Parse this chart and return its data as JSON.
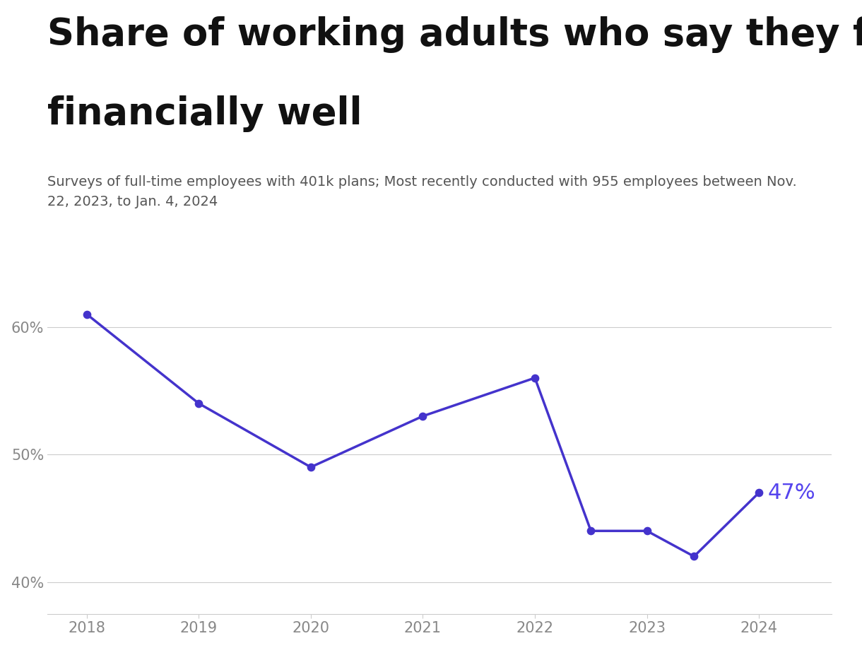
{
  "title_line1": "Share of working adults who say they feel",
  "title_line2": "financially well",
  "subtitle": "Surveys of full-time employees with 401k plans; Most recently conducted with 955 employees between Nov.\n22, 2023, to Jan. 4, 2024",
  "x_values": [
    2018,
    2019,
    2020,
    2021,
    2022,
    2022.5,
    2023.0,
    2023.42,
    2024
  ],
  "y_values": [
    61,
    54,
    49,
    53,
    56,
    44,
    44,
    42,
    47
  ],
  "line_color": "#4433cc",
  "marker_color": "#4433cc",
  "label_last": "47%",
  "label_color": "#5544ee",
  "yticks": [
    40,
    50,
    60
  ],
  "ytick_labels": [
    "40%",
    "50%",
    "60%"
  ],
  "xticks": [
    2018,
    2019,
    2020,
    2021,
    2022,
    2023,
    2024
  ],
  "ylim": [
    37.5,
    67
  ],
  "xlim": [
    2017.65,
    2024.65
  ],
  "background_color": "#ffffff",
  "grid_color": "#cccccc",
  "title_fontsize": 38,
  "subtitle_fontsize": 14,
  "tick_fontsize": 15,
  "label_fontsize": 22
}
